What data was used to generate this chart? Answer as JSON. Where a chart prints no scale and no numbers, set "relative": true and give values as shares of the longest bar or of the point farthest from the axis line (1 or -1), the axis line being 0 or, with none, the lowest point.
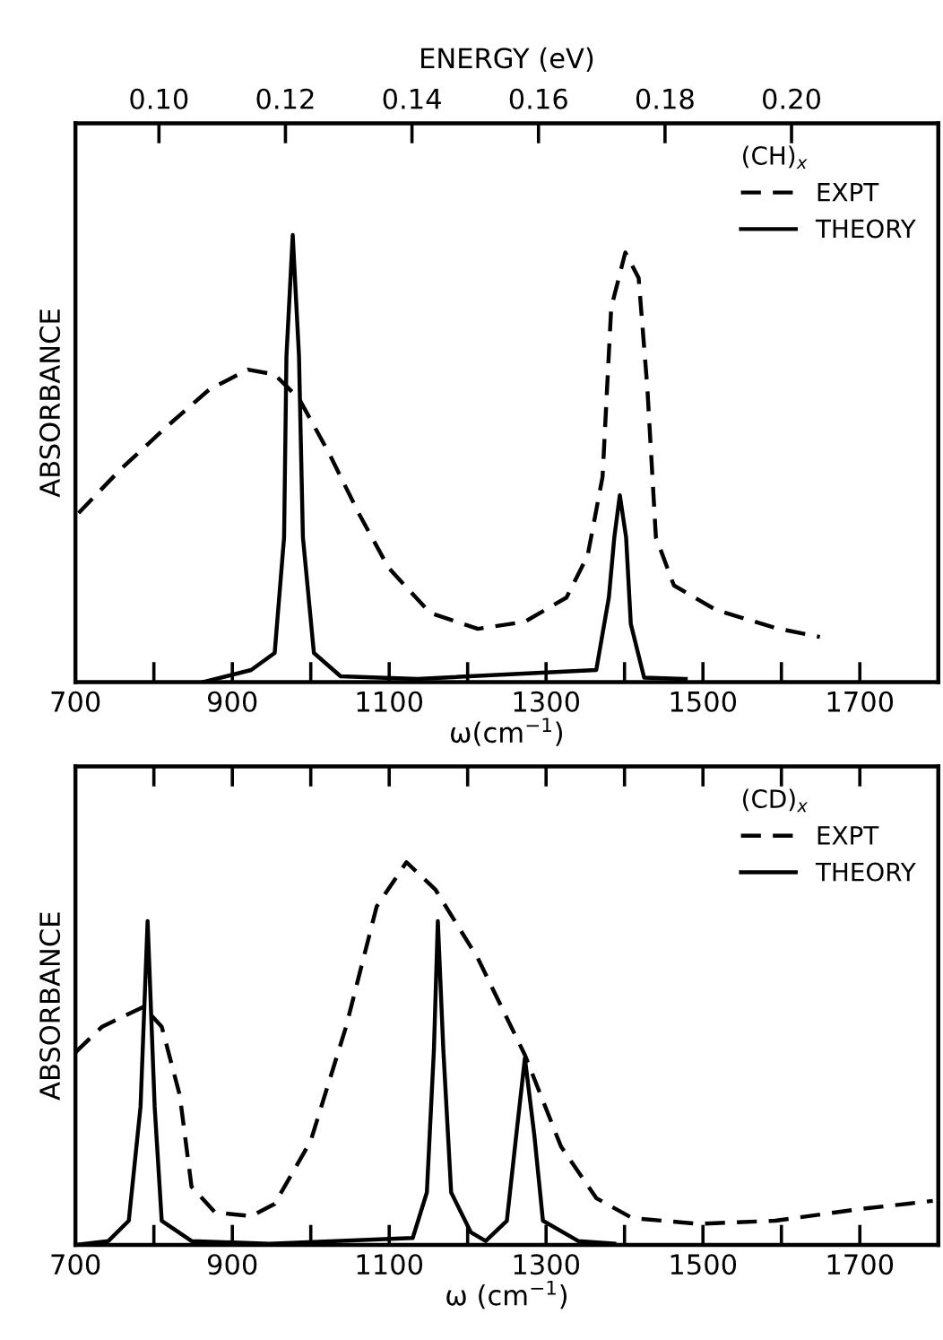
{
  "chart_data": [
    {
      "type": "line",
      "relative": true,
      "x2label": "ENERGY (eV)",
      "xlabel": "ω(cm$^{−1}$)",
      "ylabel": "ABSORBANCE",
      "legend_title": "(CH)$_{x}$",
      "legend": "top right",
      "grid": false,
      "xlim": [
        700,
        1800
      ],
      "xticks": [
        700,
        {
          "value": 800,
          "label": null
        },
        900,
        {
          "value": 1000,
          "label": null
        },
        1100,
        {
          "value": 1200,
          "label": null
        },
        1300,
        {
          "value": 1400,
          "label": null
        },
        1500,
        {
          "value": 1600,
          "label": null
        },
        1700
      ],
      "x2lim": [
        0.0868,
        0.2232
      ],
      "x2ticks": [
        {
          "value": 0.1,
          "label": "0.10"
        },
        0.12,
        0.14,
        0.16,
        0.18,
        {
          "value": 0.2,
          "label": "0.20"
        }
      ],
      "series": [
        {
          "name": "EXPT",
          "color": "#000000",
          "line_style": "dashed",
          "x": [
            704,
            757,
            818,
            871,
            920,
            954,
            985,
            1023,
            1061,
            1099,
            1152,
            1213,
            1273,
            1326,
            1353,
            1372,
            1383,
            1401,
            1418,
            1429,
            1440,
            1463,
            1516,
            1592,
            1649
          ],
          "values": [
            0.378,
            0.475,
            0.574,
            0.655,
            0.699,
            0.688,
            0.634,
            0.513,
            0.378,
            0.256,
            0.155,
            0.119,
            0.135,
            0.189,
            0.283,
            0.459,
            0.837,
            0.961,
            0.904,
            0.661,
            0.324,
            0.216,
            0.162,
            0.121,
            0.101
          ]
        },
        {
          "name": "THEORY",
          "color": "#000000",
          "line_style": "solid",
          "x": [
            863,
            924,
            954,
            966,
            969,
            977,
            985,
            990,
            1004,
            1038,
            1136,
            1364,
            1380,
            1387,
            1394,
            1402,
            1408,
            1425,
            1478
          ],
          "values": [
            0,
            0.027,
            0.065,
            0.324,
            0.729,
            1.0,
            0.729,
            0.324,
            0.065,
            0.013,
            0.007,
            0.027,
            0.189,
            0.324,
            0.418,
            0.324,
            0.13,
            0.01,
            0.007
          ]
        }
      ]
    },
    {
      "type": "line",
      "relative": true,
      "xlabel": "ω (cm$^{−1}$)",
      "ylabel": "ABSORBANCE",
      "legend_title": "(CD)$_{x}$",
      "legend": "top right",
      "grid": false,
      "xlim": [
        700,
        1800
      ],
      "xticks": [
        700,
        {
          "value": 800,
          "label": null
        },
        900,
        {
          "value": 1000,
          "label": null
        },
        1100,
        {
          "value": 1200,
          "label": null
        },
        1300,
        {
          "value": 1400,
          "label": null
        },
        1500,
        {
          "value": 1600,
          "label": null
        },
        1700
      ],
      "series": [
        {
          "name": "EXPT",
          "color": "#000000",
          "line_style": "dashed",
          "x": [
            700,
            734,
            787,
            810,
            833,
            848,
            878,
            924,
            954,
            1000,
            1045,
            1084,
            1122,
            1159,
            1213,
            1273,
            1319,
            1364,
            1410,
            1494,
            1592,
            1698,
            1793
          ],
          "values": [
            0.503,
            0.57,
            0.622,
            0.57,
            0.391,
            0.152,
            0.085,
            0.075,
            0.107,
            0.272,
            0.57,
            0.884,
            1.0,
            0.928,
            0.749,
            0.496,
            0.257,
            0.122,
            0.07,
            0.055,
            0.063,
            0.093,
            0.115
          ]
        },
        {
          "name": "THEORY",
          "color": "#000000",
          "line_style": "solid",
          "x": [
            700,
            742,
            768,
            783,
            792,
            801,
            810,
            848,
            947,
            1130,
            1148,
            1157,
            1162,
            1169,
            1179,
            1204,
            1223,
            1250,
            1262,
            1273,
            1285,
            1296,
            1341,
            1387
          ],
          "values": [
            0,
            0.01,
            0.063,
            0.361,
            0.846,
            0.361,
            0.063,
            0.01,
            0.003,
            0.018,
            0.137,
            0.51,
            0.846,
            0.51,
            0.137,
            0.033,
            0.01,
            0.063,
            0.287,
            0.488,
            0.287,
            0.063,
            0.01,
            0.003
          ]
        }
      ]
    }
  ]
}
